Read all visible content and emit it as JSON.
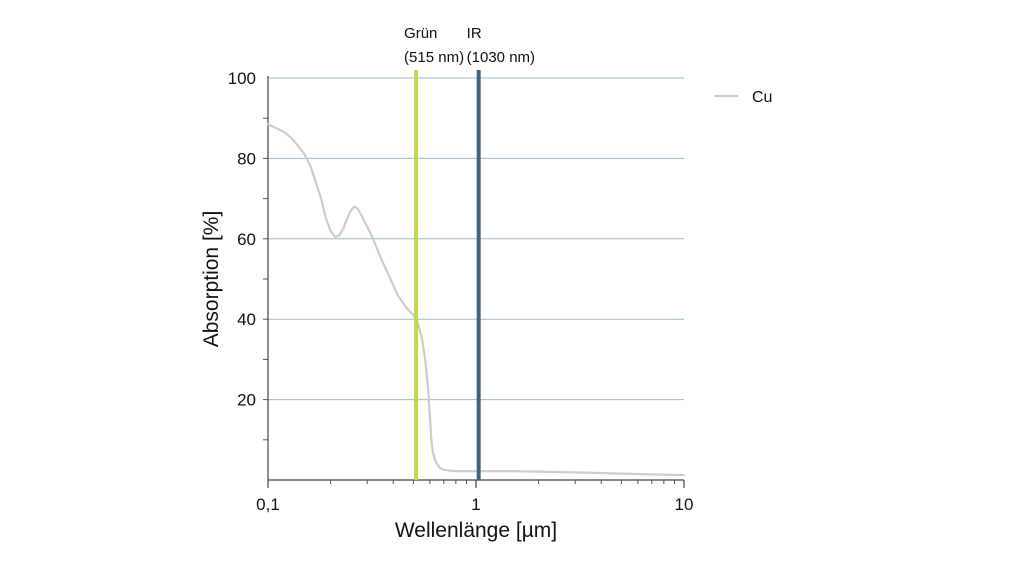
{
  "chart_data": {
    "type": "line",
    "xlabel": "Wellenlänge [µm]",
    "ylabel": "Absorption [%]",
    "x_scale": "log",
    "xlim": [
      0.1,
      10
    ],
    "ylim": [
      0,
      100
    ],
    "x_ticks": [
      {
        "value": 0.1,
        "label": "0,1"
      },
      {
        "value": 1,
        "label": "1"
      },
      {
        "value": 10,
        "label": "10"
      }
    ],
    "y_ticks": [
      {
        "value": 20,
        "label": "20"
      },
      {
        "value": 40,
        "label": "40"
      },
      {
        "value": 60,
        "label": "60"
      },
      {
        "value": 80,
        "label": "80"
      },
      {
        "value": 100,
        "label": "100"
      }
    ],
    "grid": "horizontal",
    "legend_position": "top-right",
    "series": [
      {
        "name": "Cu",
        "color": "#cccccc",
        "x": [
          0.1,
          0.11,
          0.12,
          0.13,
          0.14,
          0.15,
          0.16,
          0.17,
          0.18,
          0.19,
          0.2,
          0.21,
          0.22,
          0.23,
          0.24,
          0.25,
          0.26,
          0.27,
          0.28,
          0.3,
          0.32,
          0.35,
          0.38,
          0.42,
          0.46,
          0.5,
          0.515,
          0.53,
          0.55,
          0.57,
          0.59,
          0.6,
          0.61,
          0.62,
          0.64,
          0.67,
          0.7,
          0.8,
          1.0,
          1.5,
          2.0,
          3.0,
          5.0,
          7.0,
          10.0
        ],
        "y": [
          88.5,
          87.5,
          86.5,
          85,
          83,
          81,
          78,
          74,
          70,
          65,
          62,
          60.5,
          60.8,
          62.5,
          65,
          67,
          68,
          67.5,
          66,
          63,
          60,
          55,
          51,
          46,
          43,
          41,
          40,
          38.5,
          35,
          30,
          22,
          16,
          10,
          7,
          4.5,
          3,
          2.5,
          2.2,
          2.2,
          2.2,
          2.1,
          1.9,
          1.6,
          1.4,
          1.2
        ]
      }
    ],
    "markers": [
      {
        "label_line1": "Grün",
        "label_line2": "(515 nm)",
        "x": 0.515,
        "color": "#c2d848"
      },
      {
        "label_line1": "IR",
        "label_line2": "(1030 nm)",
        "x": 1.03,
        "color": "#3e6380"
      }
    ]
  }
}
